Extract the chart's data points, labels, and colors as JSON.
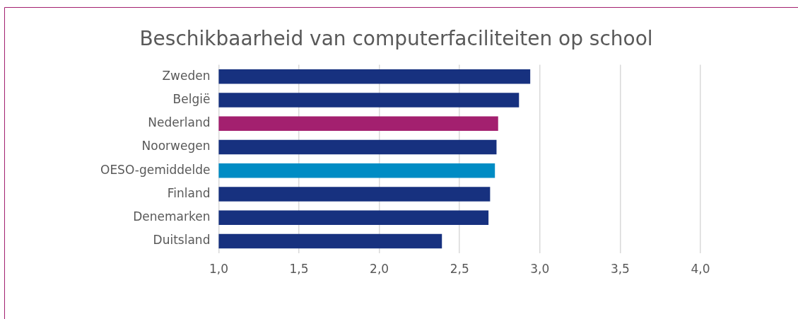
{
  "chart_data": {
    "type": "bar",
    "orientation": "horizontal",
    "title": "Beschikbaarheid van computerfaciliteiten op school",
    "categories": [
      "Zweden",
      "België",
      "Nederland",
      "Noorwegen",
      "OESO-gemiddelde",
      "Finland",
      "Denemarken",
      "Duitsland"
    ],
    "values": [
      2.94,
      2.87,
      2.74,
      2.73,
      2.72,
      2.69,
      2.68,
      2.39
    ],
    "colors": [
      "#17317f",
      "#17317f",
      "#a3206f",
      "#17317f",
      "#008cc4",
      "#17317f",
      "#17317f",
      "#17317f"
    ],
    "xlim": [
      1,
      4
    ],
    "xticks": [
      {
        "value": 1,
        "label": "1,0"
      },
      {
        "value": 1.5,
        "label": "1,5"
      },
      {
        "value": 2,
        "label": "2,0"
      },
      {
        "value": 2.5,
        "label": "2,5"
      },
      {
        "value": 3,
        "label": "3,0"
      },
      {
        "value": 3.5,
        "label": "3,5"
      },
      {
        "value": 4,
        "label": "4,0"
      }
    ],
    "grid": "x",
    "legend": false
  }
}
